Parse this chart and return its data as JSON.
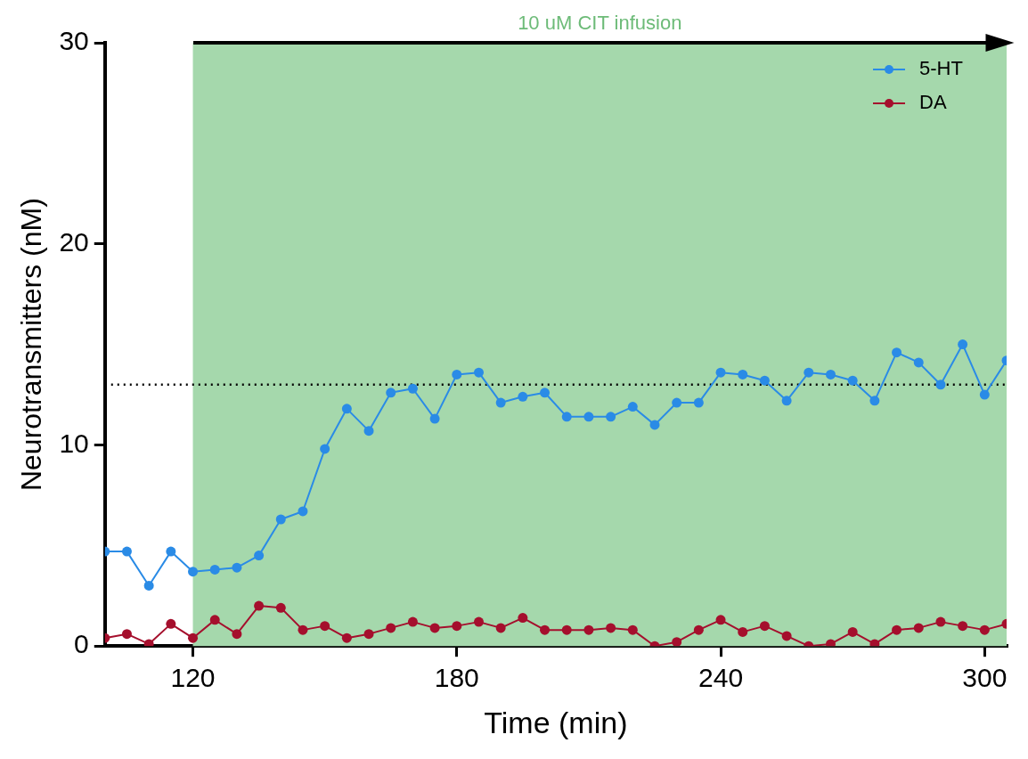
{
  "chart_data": {
    "type": "line",
    "xlabel": "Time (min)",
    "ylabel": "Neurotransmitters (nM)",
    "x": [
      100,
      105,
      110,
      115,
      120,
      125,
      130,
      135,
      140,
      145,
      150,
      155,
      160,
      165,
      170,
      175,
      180,
      185,
      190,
      195,
      200,
      205,
      210,
      215,
      220,
      225,
      230,
      235,
      240,
      245,
      250,
      255,
      260,
      265,
      270,
      275,
      280,
      285,
      290,
      295,
      300,
      305
    ],
    "series": [
      {
        "name": "5-HT",
        "color": "#2a8be6",
        "values": [
          4.7,
          4.7,
          3.0,
          4.7,
          3.7,
          3.8,
          3.9,
          4.5,
          6.3,
          6.7,
          9.8,
          11.8,
          10.7,
          12.6,
          12.8,
          11.3,
          13.5,
          13.6,
          12.1,
          12.4,
          12.6,
          11.4,
          11.4,
          11.4,
          11.9,
          11.0,
          12.1,
          12.1,
          13.6,
          13.5,
          13.2,
          12.2,
          13.6,
          13.5,
          13.2,
          12.2,
          14.6,
          14.1,
          13.0,
          15.0,
          12.5,
          14.2
        ]
      },
      {
        "name": "DA",
        "color": "#a50f2d",
        "values": [
          0.4,
          0.6,
          0.1,
          1.1,
          0.4,
          1.3,
          0.6,
          2.0,
          1.9,
          0.8,
          1.0,
          0.4,
          0.6,
          0.9,
          1.2,
          0.9,
          1.0,
          1.2,
          0.9,
          1.4,
          0.8,
          0.8,
          0.8,
          0.9,
          0.8,
          0.0,
          0.2,
          0.8,
          1.3,
          0.7,
          1.0,
          0.5,
          0.0,
          0.1,
          0.7,
          0.1,
          0.8,
          0.9,
          1.2,
          1.0,
          0.8,
          1.1
        ]
      }
    ],
    "xlim": [
      100,
      305
    ],
    "xticks": [
      120,
      180,
      240,
      300
    ],
    "ylim": [
      0,
      30
    ],
    "yticks": [
      0,
      10,
      20,
      30
    ],
    "bands": [
      {
        "axis": "x",
        "from": 120,
        "to": 305,
        "label": "10 uM CIT infusion",
        "color": "#a5d8ac"
      }
    ],
    "ref_lines": [
      {
        "axis": "y",
        "value": 13,
        "color": "#000000",
        "line_style": "dotted"
      }
    ],
    "grid": false,
    "legend": "top right",
    "marker": "circle",
    "line_style": "solid"
  }
}
